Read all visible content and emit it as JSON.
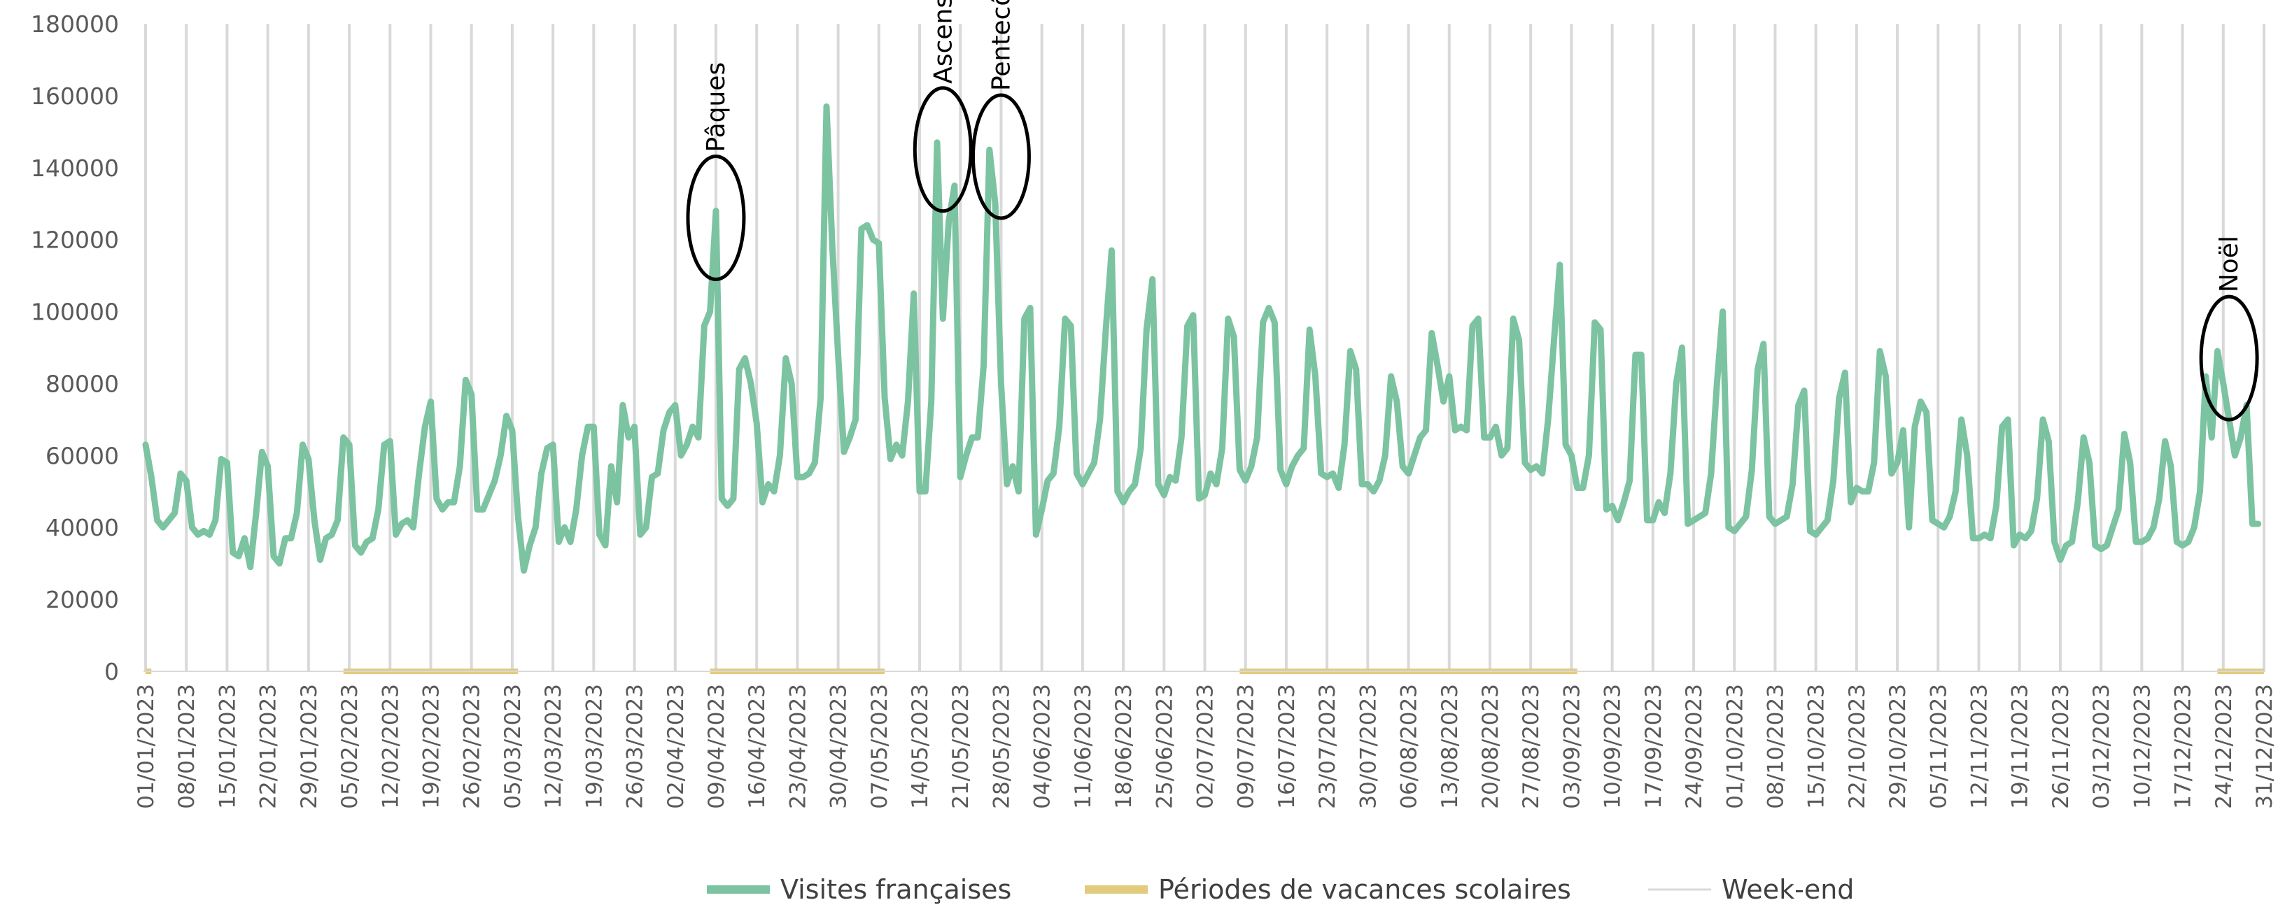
{
  "chart_data": {
    "type": "line",
    "title": "",
    "xlabel": "",
    "ylabel": "",
    "ylim": [
      0,
      180000
    ],
    "yticks": [
      "0",
      "20000",
      "40000",
      "60000",
      "80000",
      "100000",
      "120000",
      "140000",
      "160000",
      "180000"
    ],
    "x_start": "01/01/2023",
    "x_end": "31/12/2023",
    "x_tick_labels": [
      "01/01/2023",
      "08/01/2023",
      "15/01/2023",
      "22/01/2023",
      "29/01/2023",
      "05/02/2023",
      "12/02/2023",
      "19/02/2023",
      "26/02/2023",
      "05/03/2023",
      "12/03/2023",
      "19/03/2023",
      "26/03/2023",
      "02/04/2023",
      "09/04/2023",
      "16/04/2023",
      "23/04/2023",
      "30/04/2023",
      "07/05/2023",
      "14/05/2023",
      "21/05/2023",
      "28/05/2023",
      "04/06/2023",
      "11/06/2023",
      "18/06/2023",
      "25/06/2023",
      "02/07/2023",
      "09/07/2023",
      "16/07/2023",
      "23/07/2023",
      "30/07/2023",
      "06/08/2023",
      "13/08/2023",
      "20/08/2023",
      "27/08/2023",
      "03/09/2023",
      "10/09/2023",
      "17/09/2023",
      "24/09/2023",
      "01/10/2023",
      "08/10/2023",
      "15/10/2023",
      "22/10/2023",
      "29/10/2023",
      "05/11/2023",
      "12/11/2023",
      "19/11/2023",
      "26/11/2023",
      "03/12/2023",
      "10/12/2023",
      "17/12/2023",
      "24/12/2023",
      "31/12/2023"
    ],
    "series": [
      {
        "name": "Visites françaises",
        "color": "#7CC3A1",
        "weekly_values": [
          [
            63000,
            54000,
            42000,
            40000,
            42000,
            44000,
            55000
          ],
          [
            53000,
            40000,
            38000,
            39000,
            38000,
            42000,
            59000
          ],
          [
            58000,
            33000,
            32000,
            37000,
            29000,
            44000,
            61000
          ],
          [
            57000,
            32000,
            30000,
            37000,
            37000,
            44000,
            63000
          ],
          [
            59000,
            42000,
            31000,
            37000,
            38000,
            42000,
            65000
          ],
          [
            63000,
            35000,
            33000,
            36000,
            37000,
            45000,
            63000
          ],
          [
            64000,
            38000,
            41000,
            42000,
            40000,
            55000,
            68000
          ],
          [
            75000,
            48000,
            45000,
            47000,
            47000,
            57000,
            81000
          ],
          [
            77000,
            45000,
            45000,
            49000,
            53000,
            60000,
            71000
          ],
          [
            67000,
            43000,
            28000,
            35000,
            40000,
            55000,
            62000
          ],
          [
            63000,
            36000,
            40000,
            36000,
            45000,
            60000,
            68000
          ],
          [
            68000,
            38000,
            35000,
            57000,
            47000,
            74000,
            65000
          ],
          [
            68000,
            38000,
            40000,
            54000,
            55000,
            67000,
            72000
          ],
          [
            74000,
            60000,
            63000,
            68000,
            65000,
            96000,
            100000
          ],
          [
            128000,
            48000,
            46000,
            48000,
            84000,
            87000,
            80000
          ],
          [
            69000,
            47000,
            52000,
            50000,
            60000,
            87000,
            80000
          ],
          [
            54000,
            54000,
            55000,
            58000,
            76000,
            157000,
            118000
          ],
          [
            88000,
            61000,
            65000,
            70000,
            123000,
            124000,
            120000
          ],
          [
            119000,
            76000,
            59000,
            63000,
            60000,
            75000,
            105000
          ],
          [
            50000,
            50000,
            75000,
            147000,
            98000,
            125000,
            135000
          ],
          [
            54000,
            60000,
            65000,
            65000,
            85000,
            145000,
            130000
          ],
          [
            80000,
            52000,
            57000,
            50000,
            98000,
            101000,
            38000
          ],
          [
            45000,
            53000,
            55000,
            68000,
            98000,
            96000,
            55000
          ],
          [
            52000,
            55000,
            58000,
            70000,
            95000,
            117000,
            50000
          ],
          [
            47000,
            50000,
            52000,
            62000,
            95000,
            109000,
            52000
          ],
          [
            49000,
            54000,
            53000,
            65000,
            96000,
            99000,
            48000
          ],
          [
            49000,
            55000,
            52000,
            62000,
            98000,
            93000,
            56000
          ],
          [
            53000,
            57000,
            65000,
            97000,
            101000,
            97000,
            56000
          ],
          [
            52000,
            57000,
            60000,
            62000,
            95000,
            82000,
            55000
          ],
          [
            54000,
            55000,
            51000,
            63000,
            89000,
            84000,
            52000
          ],
          [
            52000,
            50000,
            53000,
            60000,
            82000,
            75000,
            57000
          ],
          [
            55000,
            60000,
            65000,
            67000,
            94000,
            85000,
            75000
          ],
          [
            82000,
            67000,
            68000,
            67000,
            96000,
            98000,
            65000
          ],
          [
            65000,
            68000,
            60000,
            62000,
            98000,
            92000,
            58000
          ],
          [
            56000,
            57000,
            55000,
            70000,
            92000,
            113000,
            63000
          ],
          [
            60000,
            51000,
            51000,
            60000,
            97000,
            95000,
            45000
          ],
          [
            46000,
            42000,
            47000,
            53000,
            88000,
            88000,
            42000
          ],
          [
            42000,
            47000,
            44000,
            55000,
            80000,
            90000,
            41000
          ],
          [
            42000,
            43000,
            44000,
            55000,
            80000,
            100000,
            40000
          ],
          [
            39000,
            41000,
            43000,
            56000,
            84000,
            91000,
            43000
          ],
          [
            41000,
            42000,
            43000,
            52000,
            74000,
            78000,
            39000
          ],
          [
            38000,
            40000,
            42000,
            53000,
            76000,
            83000,
            47000
          ],
          [
            51000,
            50000,
            50000,
            58000,
            89000,
            82000,
            55000
          ],
          [
            58000,
            67000,
            40000,
            68000,
            75000,
            72000,
            42000
          ],
          [
            41000,
            40000,
            43000,
            50000,
            70000,
            60000,
            37000
          ],
          [
            37000,
            38000,
            37000,
            46000,
            68000,
            70000,
            35000
          ],
          [
            38000,
            37000,
            39000,
            48000,
            70000,
            64000,
            36000
          ],
          [
            31000,
            35000,
            36000,
            47000,
            65000,
            58000,
            35000
          ],
          [
            34000,
            35000,
            40000,
            45000,
            66000,
            58000,
            36000
          ],
          [
            36000,
            37000,
            40000,
            48000,
            64000,
            57000,
            36000
          ],
          [
            35000,
            36000,
            40000,
            50000,
            82000,
            65000,
            89000
          ],
          [
            80000,
            70000,
            60000,
            65000,
            74000,
            41000,
            41000
          ]
        ]
      },
      {
        "name": "Périodes de vacances scolaires",
        "color": "#E3CB7E"
      },
      {
        "name": "Week-end",
        "color": "#D9D9D9"
      }
    ],
    "vacation_periods": [
      [
        "01/01/2023",
        "02/01/2023"
      ],
      [
        "04/02/2023",
        "06/03/2023"
      ],
      [
        "08/04/2023",
        "08/05/2023"
      ],
      [
        "08/07/2023",
        "04/09/2023"
      ],
      [
        "23/12/2023",
        "31/12/2023"
      ]
    ],
    "annotations": [
      {
        "label": "Pâques",
        "date": "09/04/2023",
        "value": 128000
      },
      {
        "label": "Ascenscion",
        "date": "18/05/2023",
        "value": 147000
      },
      {
        "label": "Pentecôte",
        "date": "28/05/2023",
        "value": 145000
      },
      {
        "label": "Noël",
        "date": "25/12/2023",
        "value": 89000
      }
    ],
    "legend": {
      "position": "bottom"
    },
    "grid": {
      "weekend_vertical_lines": true
    }
  }
}
